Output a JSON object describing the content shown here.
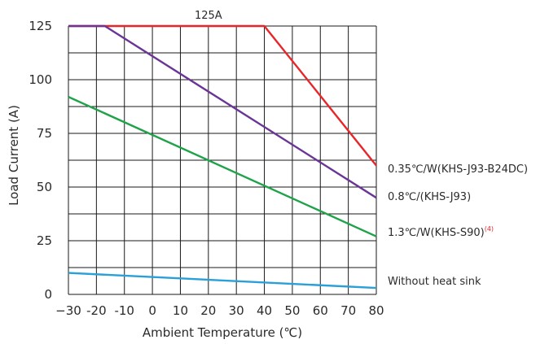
{
  "chart_data": {
    "type": "line",
    "xlabel": "Ambient Temperature (℃)",
    "ylabel": "Load Current (A)",
    "xlim": [
      -30,
      80
    ],
    "ylim": [
      0,
      125
    ],
    "xticks": [
      -30,
      -20,
      -10,
      0,
      10,
      20,
      30,
      40,
      50,
      60,
      70,
      80
    ],
    "yticks": [
      0,
      25,
      50,
      75,
      100,
      125
    ],
    "x_tick_labels": [
      "−30",
      "-20",
      "-10",
      "0",
      "10",
      "20",
      "30",
      "40",
      "50",
      "60",
      "70",
      "80"
    ],
    "y_tick_labels": [
      "0",
      "25",
      "50",
      "75",
      "100",
      "125"
    ],
    "grid": true,
    "annotations": [
      {
        "text": "125A",
        "x": 20,
        "y": 125
      }
    ],
    "series": [
      {
        "name": "0.35℃/W(KHS-J93-B24DC)",
        "color": "#e8262a",
        "x": [
          -30,
          40,
          80
        ],
        "y": [
          125,
          125,
          60
        ]
      },
      {
        "name": "0.8℃/(KHS-J93)",
        "color": "#6a3596",
        "x": [
          -30,
          -17,
          80
        ],
        "y": [
          125,
          125,
          45
        ]
      },
      {
        "name": "1.3℃/W(KHS-S90)",
        "superscript": "(4)",
        "color": "#1fa34a",
        "x": [
          -30,
          80
        ],
        "y": [
          92,
          27
        ]
      },
      {
        "name": "Without heat sink",
        "color": "#2a9fd8",
        "x": [
          -30,
          80
        ],
        "y": [
          10,
          3
        ]
      }
    ]
  }
}
